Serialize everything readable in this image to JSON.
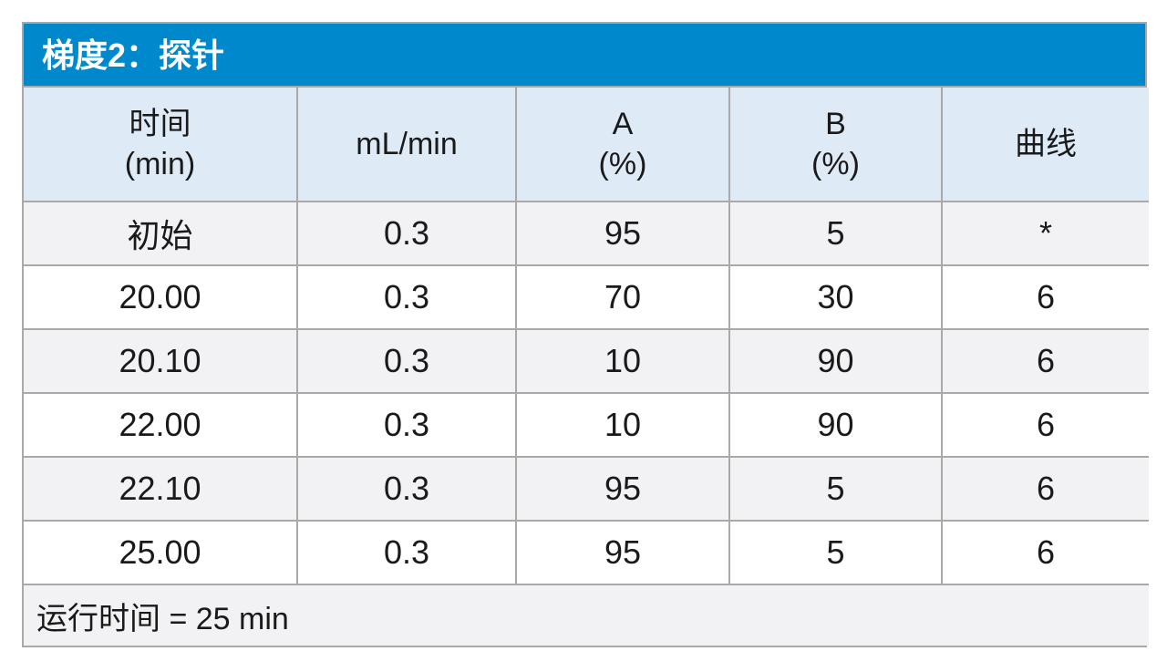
{
  "title": "梯度2：探针",
  "headers": [
    {
      "line1": "时间",
      "line2": "(min)"
    },
    {
      "line1": "mL/min",
      "line2": ""
    },
    {
      "line1": "A",
      "line2": "(%)"
    },
    {
      "line1": "B",
      "line2": "(%)"
    },
    {
      "line1": "曲线",
      "line2": ""
    }
  ],
  "rows": [
    [
      "初始",
      "0.3",
      "95",
      "5",
      "*"
    ],
    [
      "20.00",
      "0.3",
      "70",
      "30",
      "6"
    ],
    [
      "20.10",
      "0.3",
      "10",
      "90",
      "6"
    ],
    [
      "22.00",
      "0.3",
      "10",
      "90",
      "6"
    ],
    [
      "22.10",
      "0.3",
      "95",
      "5",
      "6"
    ],
    [
      "25.00",
      "0.3",
      "95",
      "5",
      "6"
    ]
  ],
  "footer": "运行时间 = 25 min"
}
